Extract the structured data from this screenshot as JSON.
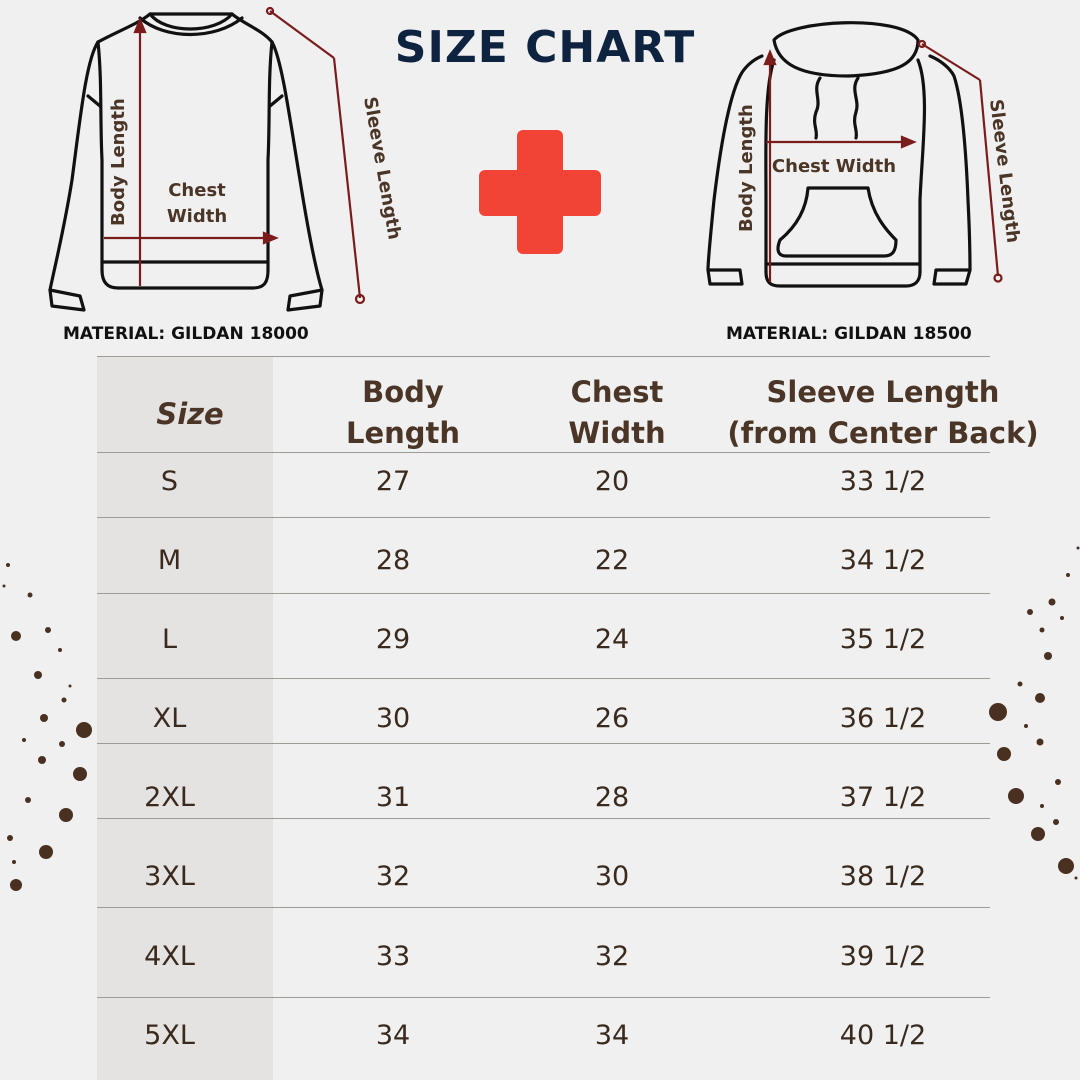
{
  "title": "SIZE CHART",
  "colors": {
    "title": "#0d2340",
    "accent_plus": "#f24436",
    "dim_line": "#7a1c1c",
    "text_brown": "#4a3526",
    "dots": "#4a3020"
  },
  "left_garment": {
    "body_length": "Body Length",
    "chest_line1": "Chest",
    "chest_line2": "Width",
    "sleeve_length": "Sleeve Length",
    "material": "MATERIAL: GILDAN 18000"
  },
  "right_garment": {
    "body_length": "Body Length",
    "chest": "Chest Width",
    "sleeve_length": "Sleeve Length",
    "material": "MATERIAL: GILDAN 18500"
  },
  "plus_icon": "plus-icon",
  "table": {
    "headers": {
      "size": "Size",
      "body_line1": "Body",
      "body_line2": "Length",
      "chest_line1": "Chest",
      "chest_line2": "Width",
      "sleeve_line1": "Sleeve Length",
      "sleeve_line2": "(from Center Back)"
    },
    "rows": [
      {
        "size": "S",
        "body": "27",
        "chest": "20",
        "sleeve": "33 1/2"
      },
      {
        "size": "M",
        "body": "28",
        "chest": "22",
        "sleeve": "34 1/2"
      },
      {
        "size": "L",
        "body": "29",
        "chest": "24",
        "sleeve": "35 1/2"
      },
      {
        "size": "XL",
        "body": "30",
        "chest": "26",
        "sleeve": "36 1/2"
      },
      {
        "size": "2XL",
        "body": "31",
        "chest": "28",
        "sleeve": "37 1/2"
      },
      {
        "size": "3XL",
        "body": "32",
        "chest": "30",
        "sleeve": "38 1/2"
      },
      {
        "size": "4XL",
        "body": "33",
        "chest": "32",
        "sleeve": "39 1/2"
      },
      {
        "size": "5XL",
        "body": "34",
        "chest": "34",
        "sleeve": "40 1/2"
      }
    ]
  }
}
